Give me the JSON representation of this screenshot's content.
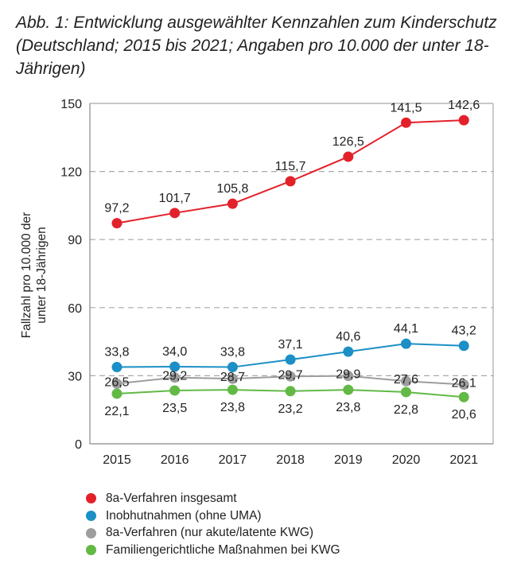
{
  "chart_data": {
    "type": "line",
    "title": "Abb. 1: Entwicklung ausgewählter Kennzahlen zum Kinderschutz (Deutschland; 2015 bis 2021; Angaben pro 10.000 der unter 18-Jährigen)",
    "ylabel": [
      "Fallzahl pro 10.000 der",
      "unter 18-Jährigen"
    ],
    "xlabel": "",
    "x": [
      "2015",
      "2016",
      "2017",
      "2018",
      "2019",
      "2020",
      "2021"
    ],
    "ylim": [
      0,
      150
    ],
    "yticks": [
      0,
      30,
      60,
      90,
      120,
      150
    ],
    "grid": "dashed horizontal",
    "legend_position": "bottom",
    "series": [
      {
        "name": "8a-Verfahren insgesamt",
        "color": "#e3212a",
        "values": [
          97.2,
          101.7,
          105.8,
          115.7,
          126.5,
          141.5,
          142.6
        ],
        "labels": [
          "97,2",
          "101,7",
          "105,8",
          "115,7",
          "126,5",
          "141,5",
          "142,6"
        ],
        "label_pos": "above"
      },
      {
        "name": "Inobhutnahmen (ohne UMA)",
        "color": "#1b8fc6",
        "values": [
          33.8,
          34.0,
          33.8,
          37.1,
          40.6,
          44.1,
          43.2
        ],
        "labels": [
          "33,8",
          "34,0",
          "33,8",
          "37,1",
          "40,6",
          "44,1",
          "43,2"
        ],
        "label_pos": "above"
      },
      {
        "name": "8a-Verfahren (nur akute/latente KWG)",
        "color": "#9d9d9d",
        "values": [
          26.5,
          29.2,
          28.7,
          29.7,
          29.9,
          27.6,
          26.1
        ],
        "labels": [
          "26,5",
          "29,2",
          "28,7",
          "29,7",
          "29,9",
          "27,6",
          "26,1"
        ],
        "label_pos": "above-low"
      },
      {
        "name": "Familiengerichtliche Maßnahmen bei KWG",
        "color": "#62b946",
        "values": [
          22.1,
          23.5,
          23.8,
          23.2,
          23.8,
          22.8,
          20.6
        ],
        "labels": [
          "22,1",
          "23,5",
          "23,8",
          "23,2",
          "23,8",
          "22,8",
          "20,6"
        ],
        "label_pos": "below"
      }
    ]
  }
}
